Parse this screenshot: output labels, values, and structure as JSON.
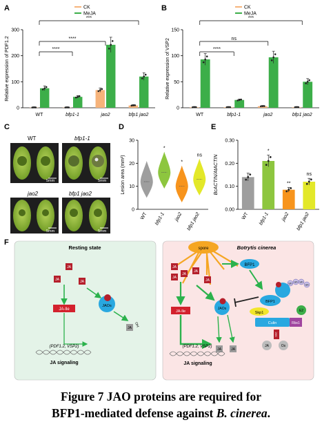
{
  "panels": {
    "a": "A",
    "b": "B",
    "c": "C",
    "d": "D",
    "e": "E",
    "f": "F"
  },
  "colors": {
    "ck": "#f6b37a",
    "meja": "#3cae49",
    "wt_gray": "#9e9e9e",
    "bfp1_green": "#8dc63f",
    "jao2_orange": "#f7941d",
    "double_yellow": "#e3e829"
  },
  "legend": {
    "ck": "CK",
    "meja": "MeJA"
  },
  "chart_data": [
    {
      "type": "bar",
      "panel": "A",
      "ylabel": "Relative expression of PDF1.2",
      "ylim": [
        0,
        300
      ],
      "yticks": [
        0,
        100,
        200,
        300
      ],
      "categories": [
        "WT",
        "bfp1-1",
        "jao2",
        "bfp1 jao2"
      ],
      "series": [
        {
          "name": "CK",
          "values": [
            1,
            1,
            68,
            9
          ]
        },
        {
          "name": "MeJA",
          "values": [
            75,
            42,
            242,
            120
          ]
        }
      ],
      "significance": [
        "****",
        "****",
        "***"
      ]
    },
    {
      "type": "bar",
      "panel": "B",
      "ylabel": "Relative expression of VSP2",
      "ylim": [
        0,
        150
      ],
      "yticks": [
        0,
        50,
        100,
        150
      ],
      "categories": [
        "WT",
        "bfp1-1",
        "jao2",
        "bfp1 jao2"
      ],
      "series": [
        {
          "name": "CK",
          "values": [
            1,
            1,
            3,
            1
          ]
        },
        {
          "name": "MeJA",
          "values": [
            93,
            15,
            97,
            50
          ]
        }
      ],
      "significance": [
        "****",
        "ns",
        "***"
      ]
    },
    {
      "type": "violin",
      "panel": "D",
      "ylabel": "Lesion area (mm²)",
      "ylim": [
        0,
        30
      ],
      "yticks": [
        0,
        10,
        20,
        30
      ],
      "categories": [
        "WT",
        "bfp1-1",
        "jao2",
        "bfp1 jao2"
      ],
      "medians": [
        12,
        16,
        10,
        13
      ],
      "annotations": [
        "",
        "*",
        "*",
        "ns"
      ]
    },
    {
      "type": "bar",
      "panel": "E",
      "ylabel": "BcACTIN/AtACTIN",
      "ylim": [
        0,
        0.3
      ],
      "yticks": [
        "0.00",
        "0.10",
        "0.20",
        "0.30"
      ],
      "categories": [
        "WT",
        "bfp1-1",
        "jao2",
        "bfp1 jao2"
      ],
      "values": [
        0.14,
        0.21,
        0.085,
        0.12
      ],
      "annotations": [
        "",
        "*",
        "**",
        "ns"
      ]
    }
  ],
  "panel_c": {
    "labels": [
      "WT",
      "bfp1-1",
      "jao2",
      "bfp1 jao2"
    ],
    "scale": "5mm"
  },
  "panel_f": {
    "left_title": "Resting state",
    "right_title": "Botrytis cinerea",
    "spore": "spore",
    "ja": "JA",
    "jaile": "JA-Ile",
    "jaos": "JAOs",
    "oh": "OH",
    "genes": "(PDF1.2, VSP2)",
    "signaling": "JA signaling",
    "bfp1": "BFP1",
    "skp1": "Skp1",
    "cullin": "Culin",
    "rbx1": "Rbx1",
    "e2": "E2",
    "ub": "Ub",
    "prot": "26S"
  },
  "caption": {
    "line1": "Figure 7 JAO proteins are required for",
    "line2a": "BFP1-mediated defense against ",
    "line2b": "B. cinerea",
    "line2c": "."
  }
}
